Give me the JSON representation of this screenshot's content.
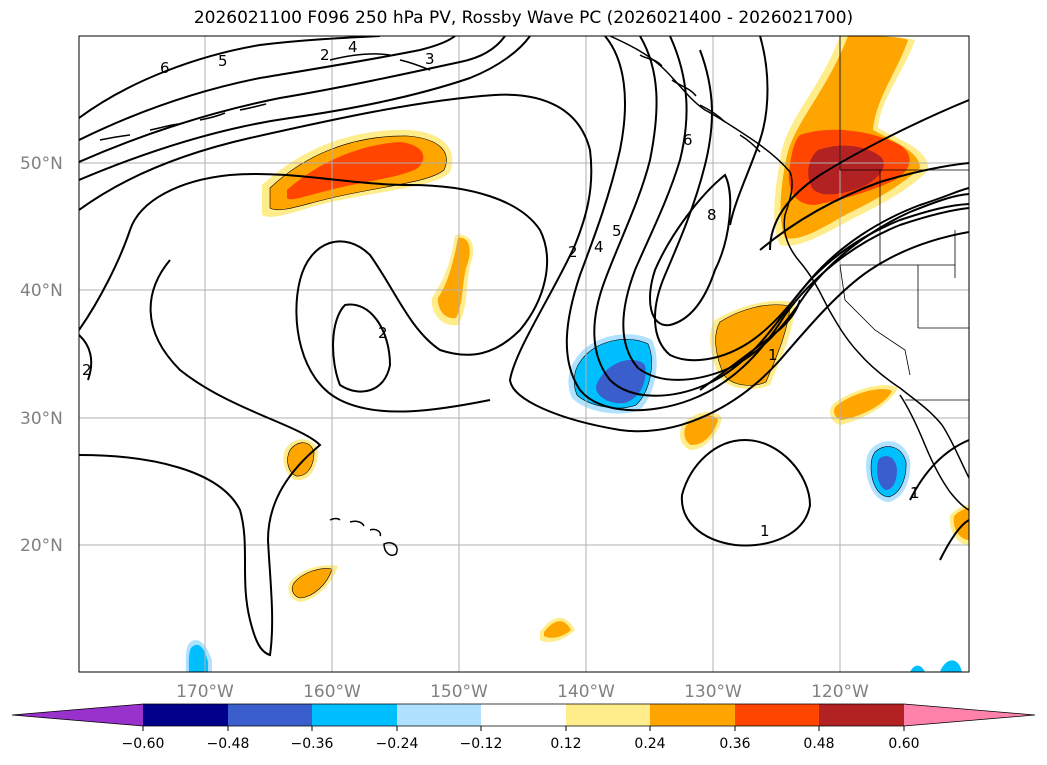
{
  "title": "2026021100 F096 250 hPa PV, Rossby Wave PC (2026021400 - 2026021700)",
  "map": {
    "lat_labels": [
      "50°N",
      "40°N",
      "30°N",
      "20°N"
    ],
    "lon_labels": [
      "170°W",
      "160°W",
      "150°W",
      "140°W",
      "130°W",
      "120°W"
    ],
    "contour_labels": [
      "6",
      "5",
      "4",
      "3",
      "2",
      "2",
      "2",
      "2",
      "4",
      "5",
      "6",
      "8",
      "1",
      "1",
      "1"
    ]
  },
  "colorbar": {
    "ticks": [
      "−0.60",
      "−0.48",
      "−0.36",
      "−0.24",
      "−0.12",
      "0.12",
      "0.24",
      "0.36",
      "0.48",
      "0.60"
    ],
    "colors": [
      "#9932cc",
      "#00008b",
      "#3a5fcd",
      "#00bfff",
      "#b0e2ff",
      "#ffffff",
      "#ffec8b",
      "#ffa500",
      "#ff4500",
      "#b22222",
      "#ff82ab"
    ]
  }
}
